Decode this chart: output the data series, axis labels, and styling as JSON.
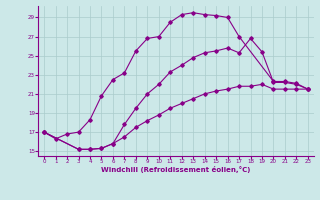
{
  "xlabel": "Windchill (Refroidissement éolien,°C)",
  "bg_color": "#cce8e8",
  "grid_color": "#aacccc",
  "line_color": "#880088",
  "xlim": [
    -0.5,
    23.5
  ],
  "ylim": [
    14.5,
    30.2
  ],
  "yticks": [
    15,
    17,
    19,
    21,
    23,
    25,
    27,
    29
  ],
  "xticks": [
    0,
    1,
    2,
    3,
    4,
    5,
    6,
    7,
    8,
    9,
    10,
    11,
    12,
    13,
    14,
    15,
    16,
    17,
    18,
    19,
    20,
    21,
    22,
    23
  ],
  "line1_x": [
    0,
    1,
    2,
    3,
    4,
    5,
    6,
    7,
    8,
    9,
    10,
    11,
    12,
    13,
    14,
    15,
    16,
    17,
    20,
    21,
    22,
    23
  ],
  "line1_y": [
    17.0,
    16.3,
    16.8,
    17.0,
    18.3,
    20.8,
    22.5,
    23.2,
    25.5,
    26.8,
    27.0,
    28.5,
    29.3,
    29.5,
    29.3,
    29.2,
    29.0,
    27.0,
    22.3,
    22.3,
    22.1,
    21.5
  ],
  "line2_x": [
    0,
    3,
    4,
    5,
    6,
    7,
    8,
    9,
    10,
    11,
    12,
    13,
    14,
    15,
    16,
    17,
    18,
    19,
    20,
    21,
    22,
    23
  ],
  "line2_y": [
    17.0,
    15.2,
    15.2,
    15.3,
    15.8,
    17.8,
    19.5,
    21.0,
    22.0,
    23.3,
    24.0,
    24.8,
    25.3,
    25.5,
    25.8,
    25.3,
    26.8,
    25.4,
    22.2,
    22.2,
    22.0,
    21.5
  ],
  "line3_x": [
    0,
    3,
    4,
    5,
    6,
    7,
    8,
    9,
    10,
    11,
    12,
    13,
    14,
    15,
    16,
    17,
    18,
    19,
    20,
    21,
    22,
    23
  ],
  "line3_y": [
    17.0,
    15.2,
    15.2,
    15.3,
    15.8,
    16.5,
    17.5,
    18.2,
    18.8,
    19.5,
    20.0,
    20.5,
    21.0,
    21.3,
    21.5,
    21.8,
    21.8,
    22.0,
    21.5,
    21.5,
    21.5,
    21.5
  ]
}
